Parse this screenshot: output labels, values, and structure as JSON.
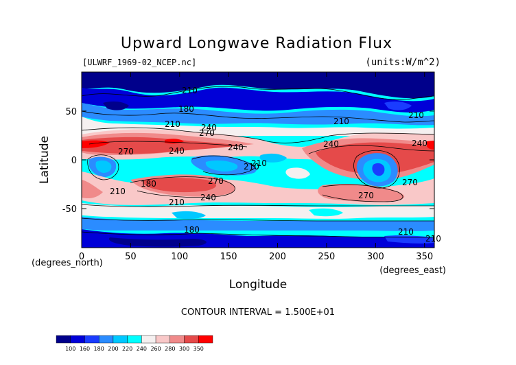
{
  "chart_data": {
    "type": "heatmap",
    "title": "Upward Longwave Radiation Flux",
    "subtitle_left": "[ULWRF_1969-02_NCEP.nc]",
    "subtitle_right": "(units:W/m^2)",
    "xlabel": "Longitude",
    "ylabel": "Latitude",
    "x_unit_label": "(degrees_east)",
    "y_unit_label": "(degrees_north)",
    "x_ticks": [
      0,
      50,
      100,
      150,
      200,
      250,
      300,
      350
    ],
    "y_ticks": [
      50,
      0,
      -50
    ],
    "xlim": [
      0,
      360
    ],
    "ylim": [
      -90,
      90
    ],
    "contour_interval_text": "CONTOUR INTERVAL = 1.500E+01",
    "contour_labels": [
      "210",
      "180",
      "210",
      "240",
      "270",
      "240",
      "210",
      "210",
      "240",
      "270",
      "240",
      "210",
      "180",
      "270",
      "240",
      "210",
      "270",
      "210",
      "240",
      "210",
      "180",
      "210",
      "270",
      "210"
    ],
    "colorbar": {
      "levels": [
        "100",
        "160",
        "180",
        "200",
        "220",
        "240",
        "260",
        "280",
        "300",
        "350"
      ],
      "colors": [
        "#00008b",
        "#0000d8",
        "#1a3cff",
        "#2b8cff",
        "#00c8ff",
        "#00ffff",
        "#f5f0f0",
        "#f9c8c8",
        "#f08a8a",
        "#e54a4a",
        "#ff0000"
      ]
    }
  }
}
